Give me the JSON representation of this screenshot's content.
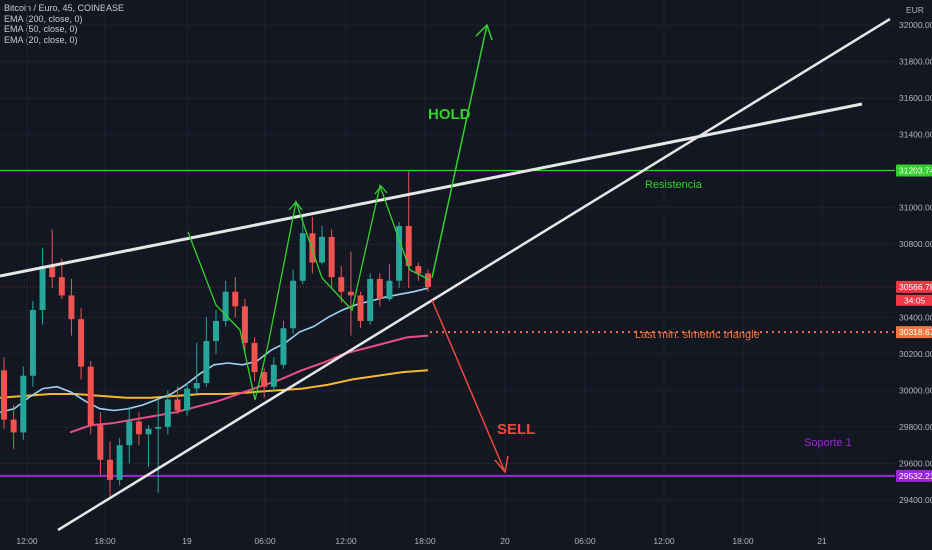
{
  "legend": {
    "title": "Bitcoin / Euro, 45, COINBASE",
    "ema200": "EMA (200, close, 0)",
    "ema50": "EMA (50, close, 0)",
    "ema20": "EMA (20, close, 0)"
  },
  "currency": "EUR",
  "annotations": {
    "hold": "HOLD",
    "sell": "SELL",
    "resistencia": "Resistencia",
    "last_min": "Last min. simetric triangle",
    "soporte": "Soporte 1"
  },
  "price_tags": {
    "resistance": "31203.74",
    "current": "30566.78",
    "countdown": "34:05",
    "last_min": "30318.67",
    "support": "29532.21"
  },
  "colors": {
    "background": "#131722",
    "up": "#26a69a",
    "down": "#ef5350",
    "ema200": "#f5b631",
    "ema50": "#e84f86",
    "ema20": "#9fd3f0",
    "green": "#33d12c",
    "red": "#f0483e",
    "orange": "#f4763e",
    "purple": "#9c27d9"
  },
  "chart_data": {
    "type": "candlestick",
    "y_ticks": [
      "32000.00",
      "31800.00",
      "31600.00",
      "31400.00",
      "31000.00",
      "30800.00",
      "30400.00",
      "30200.00",
      "30000.00",
      "29800.00",
      "29600.00",
      "29400.00"
    ],
    "x_ticks": [
      "12:00",
      "18:00",
      "19",
      "06:00",
      "12:00",
      "18:00",
      "20",
      "06:00",
      "12:00",
      "18:00",
      "21"
    ],
    "ylim": [
      29370,
      32100
    ],
    "candles": [
      [
        30110,
        30180,
        29790,
        29840
      ],
      [
        29840,
        29920,
        29680,
        29770
      ],
      [
        29770,
        30130,
        29730,
        30080
      ],
      [
        30080,
        30490,
        30020,
        30440
      ],
      [
        30440,
        30780,
        30360,
        30680
      ],
      [
        30680,
        30880,
        30560,
        30620
      ],
      [
        30620,
        30720,
        30500,
        30520
      ],
      [
        30520,
        30610,
        30300,
        30390
      ],
      [
        30390,
        30450,
        30060,
        30130
      ],
      [
        30130,
        30160,
        29760,
        29810
      ],
      [
        29810,
        29880,
        29530,
        29620
      ],
      [
        29620,
        29720,
        29420,
        29510
      ],
      [
        29510,
        29740,
        29480,
        29700
      ],
      [
        29700,
        29910,
        29600,
        29830
      ],
      [
        29830,
        29880,
        29700,
        29760
      ],
      [
        29760,
        29810,
        29580,
        29790
      ],
      [
        29790,
        29950,
        29440,
        29800
      ],
      [
        29800,
        30000,
        29760,
        29950
      ],
      [
        29950,
        30020,
        29870,
        29890
      ],
      [
        29890,
        30040,
        29860,
        30010
      ],
      [
        30010,
        30260,
        29980,
        30040
      ],
      [
        30040,
        30400,
        30020,
        30270
      ],
      [
        30270,
        30440,
        30200,
        30380
      ],
      [
        30380,
        30600,
        30350,
        30540
      ],
      [
        30540,
        30620,
        30400,
        30460
      ],
      [
        30460,
        30500,
        30200,
        30260
      ],
      [
        30260,
        30290,
        30050,
        30100
      ],
      [
        30100,
        30120,
        29960,
        30020
      ],
      [
        30020,
        30180,
        29990,
        30140
      ],
      [
        30140,
        30380,
        30120,
        30340
      ],
      [
        30340,
        30660,
        30310,
        30600
      ],
      [
        30600,
        30960,
        30580,
        30860
      ],
      [
        30860,
        30950,
        30640,
        30700
      ],
      [
        30700,
        30900,
        30690,
        30840
      ],
      [
        30840,
        30880,
        30560,
        30620
      ],
      [
        30620,
        30680,
        30480,
        30540
      ],
      [
        30540,
        30760,
        30300,
        30520
      ],
      [
        30520,
        30540,
        30340,
        30380
      ],
      [
        30380,
        30640,
        30360,
        30610
      ],
      [
        30610,
        30640,
        30460,
        30500
      ],
      [
        30500,
        30690,
        30490,
        30600
      ],
      [
        30600,
        30920,
        30560,
        30900
      ],
      [
        30900,
        31200,
        30560,
        30680
      ],
      [
        30680,
        30700,
        30600,
        30640
      ],
      [
        30640,
        30660,
        30540,
        30566
      ]
    ],
    "ema20": [
      29880,
      29900,
      29960,
      30010,
      30020,
      29990,
      29940,
      29900,
      29890,
      29900,
      29920,
      29950,
      29980,
      30030,
      30090,
      30140,
      30150,
      30140,
      30160,
      30220,
      30260,
      30320,
      30350,
      30400,
      30440,
      30470,
      30490,
      30510,
      30526,
      30540,
      30560
    ],
    "ema50": [
      29770,
      29810,
      29820,
      29840,
      29860,
      29880,
      29910,
      29940,
      29980,
      30020,
      30060,
      30110,
      30150,
      30200,
      30230,
      30260,
      30290,
      30300
    ],
    "ema200": [
      29960,
      29970,
      29980,
      29980,
      29970,
      29960,
      29960,
      29970,
      29980,
      29980,
      29990,
      30000,
      30010,
      30030,
      30060,
      30080,
      30100,
      30110
    ],
    "levels": {
      "resistance": 31203.74,
      "current": 30566.78,
      "last_min": 30318.67,
      "support": 29532.21
    }
  }
}
